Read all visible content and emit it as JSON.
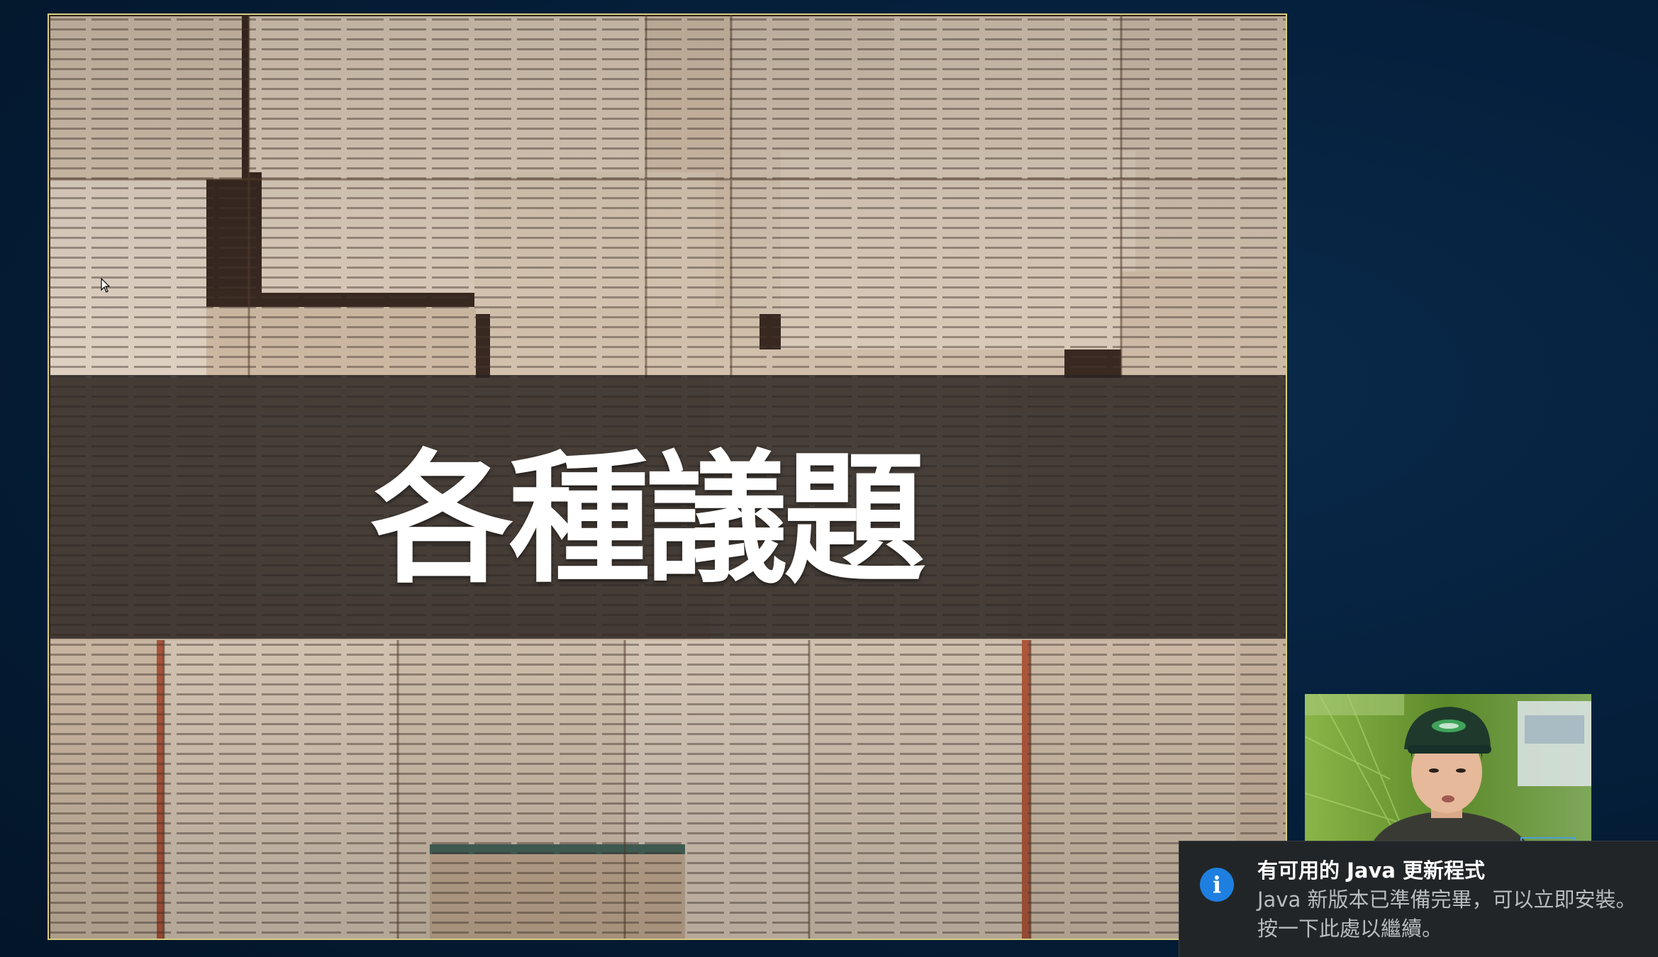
{
  "slide": {
    "title": "各種議題"
  },
  "notification": {
    "icon": "info-icon",
    "icon_glyph": "i",
    "title": "有可用的 Java 更新程式",
    "line1": "Java 新版本已準備完畢，可以立即安裝。",
    "line2": "按一下此處以繼續。"
  },
  "colors": {
    "desktop_background": "#031a33",
    "slide_border": "#d8cf7e",
    "notification_background": "#222527",
    "info_icon_blue": "#1e7fe0"
  }
}
